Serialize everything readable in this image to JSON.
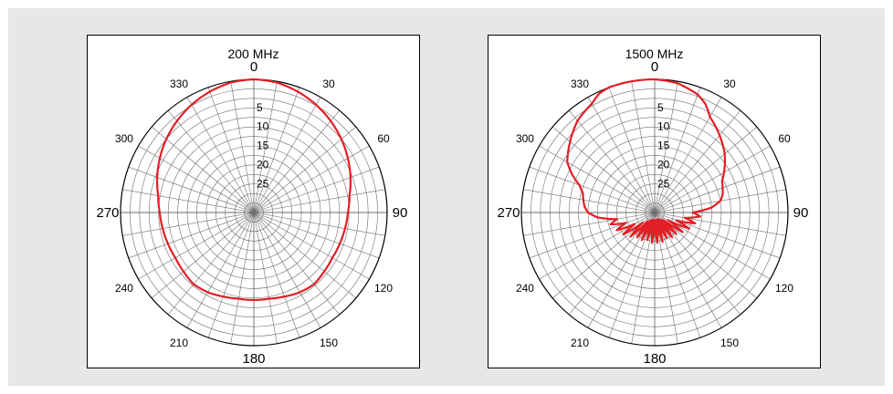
{
  "chart_data": [
    {
      "type": "polar",
      "title": "200 MHz",
      "angle_ticks": [
        {
          "angle": 0,
          "label": "0"
        },
        {
          "angle": 30,
          "label": "30"
        },
        {
          "angle": 60,
          "label": "60"
        },
        {
          "angle": 90,
          "label": "90"
        },
        {
          "angle": 120,
          "label": "120"
        },
        {
          "angle": 150,
          "label": "150"
        },
        {
          "angle": 180,
          "label": "180"
        },
        {
          "angle": 210,
          "label": "210"
        },
        {
          "angle": 240,
          "label": "240"
        },
        {
          "angle": 270,
          "label": "270"
        },
        {
          "angle": 300,
          "label": "300"
        },
        {
          "angle": 330,
          "label": "330"
        }
      ],
      "radial_ticks": [
        {
          "value": 5,
          "label": "5"
        },
        {
          "value": 10,
          "label": "10"
        },
        {
          "value": 15,
          "label": "15"
        },
        {
          "value": 20,
          "label": "20"
        },
        {
          "value": 25,
          "label": "25"
        }
      ],
      "radial_range_db": [
        0,
        35
      ],
      "angle_grid_step": 10,
      "grid": true,
      "line_color": "#e31e24",
      "series": [
        {
          "angles": [
            0,
            10,
            20,
            30,
            40,
            50,
            60,
            70,
            80,
            90,
            100,
            110,
            120,
            130,
            140,
            150,
            160,
            170,
            180,
            190,
            200,
            210,
            220,
            230,
            240,
            250,
            260,
            270,
            280,
            290,
            300,
            310,
            320,
            330,
            340,
            350
          ],
          "attenuation": [
            0,
            0.3,
            1.2,
            2.3,
            3.6,
            5.0,
            6.5,
            8.0,
            9.5,
            10.3,
            10.7,
            11.0,
            11.2,
            10.9,
            10.4,
            10.8,
            11.5,
            12.0,
            12.0,
            12.0,
            11.5,
            10.8,
            10.4,
            10.9,
            11.2,
            11.0,
            10.7,
            10.3,
            9.5,
            8.0,
            6.5,
            5.0,
            3.6,
            2.3,
            1.2,
            0.3
          ]
        }
      ]
    },
    {
      "type": "polar",
      "title": "1500 MHz",
      "angle_ticks": [
        {
          "angle": 0,
          "label": "0"
        },
        {
          "angle": 30,
          "label": "30"
        },
        {
          "angle": 60,
          "label": "60"
        },
        {
          "angle": 90,
          "label": "90"
        },
        {
          "angle": 120,
          "label": "120"
        },
        {
          "angle": 150,
          "label": "150"
        },
        {
          "angle": 180,
          "label": "180"
        },
        {
          "angle": 210,
          "label": "210"
        },
        {
          "angle": 240,
          "label": "240"
        },
        {
          "angle": 270,
          "label": "270"
        },
        {
          "angle": 300,
          "label": "300"
        },
        {
          "angle": 330,
          "label": "330"
        }
      ],
      "radial_ticks": [
        {
          "value": 5,
          "label": "5"
        },
        {
          "value": 10,
          "label": "10"
        },
        {
          "value": 15,
          "label": "15"
        },
        {
          "value": 20,
          "label": "20"
        },
        {
          "value": 25,
          "label": "25"
        }
      ],
      "radial_range_db": [
        0,
        35
      ],
      "angle_grid_step": 10,
      "grid": true,
      "line_color": "#e31e24",
      "series": [
        {
          "angles": [
            0,
            10,
            20,
            25,
            30,
            40,
            50,
            60,
            65,
            70,
            75,
            80,
            85,
            90,
            95,
            100,
            105,
            110,
            115,
            120,
            125,
            130,
            135,
            140,
            145,
            150,
            155,
            160,
            165,
            170,
            175,
            180,
            185,
            190,
            195,
            200,
            205,
            210,
            215,
            220,
            225,
            230,
            235,
            240,
            245,
            250,
            255,
            260,
            265,
            270,
            275,
            280,
            285,
            290,
            295,
            300,
            310,
            320,
            330,
            335,
            340,
            350
          ],
          "attenuation": [
            0,
            0.5,
            2.0,
            3.5,
            6.0,
            8.5,
            11.0,
            14.0,
            15.5,
            16.0,
            16.5,
            17.5,
            20.0,
            25.0,
            23.0,
            27.0,
            24.0,
            29.0,
            25.0,
            31.0,
            26.0,
            32.0,
            27.0,
            32.5,
            27.0,
            33.0,
            27.5,
            33.0,
            27.0,
            33.0,
            27.0,
            33.0,
            27.0,
            33.0,
            27.5,
            33.0,
            27.0,
            32.5,
            27.0,
            32.0,
            26.0,
            31.0,
            25.0,
            29.0,
            24.0,
            27.0,
            23.0,
            25.0,
            20.0,
            17.5,
            16.5,
            16.0,
            15.5,
            14.0,
            11.0,
            8.5,
            6.0,
            3.5,
            2.0,
            0.5,
            0,
            0
          ]
        }
      ]
    }
  ]
}
